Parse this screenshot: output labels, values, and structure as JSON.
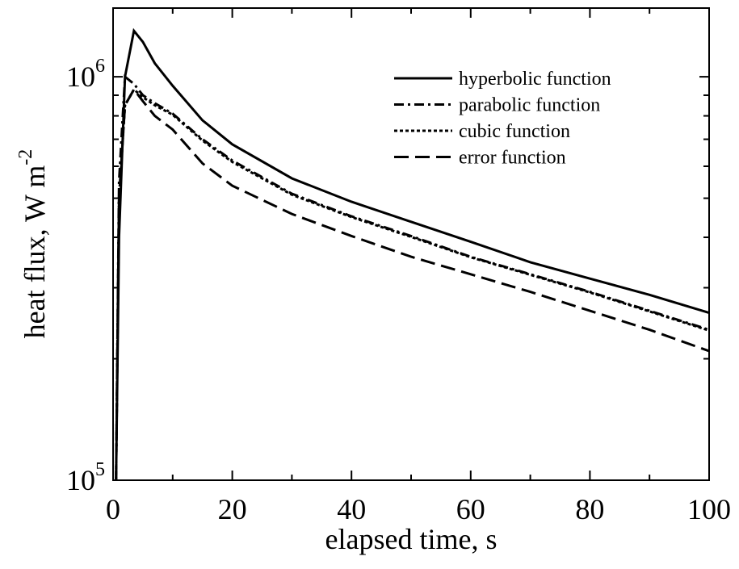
{
  "chart_data": {
    "type": "line",
    "x_label": "elapsed time, s",
    "y_label": "heat flux, W m",
    "y_label_exponent": "-2",
    "x": [
      0.5,
      1,
      2,
      3.5,
      5,
      7,
      10,
      15,
      20,
      30,
      40,
      50,
      60,
      70,
      80,
      90,
      100
    ],
    "series": [
      {
        "name": "hyperbolic function",
        "color": "#000000",
        "dash": "solid",
        "values": [
          100000,
          400000,
          1000000,
          1300000,
          1220000,
          1080000,
          950000,
          780000,
          680000,
          560000,
          490000,
          437000,
          390000,
          347000,
          316000,
          288000,
          260000
        ]
      },
      {
        "name": "parabolic function",
        "color": "#000000",
        "dash": "dashdot",
        "values": [
          100000,
          550000,
          1000000,
          960000,
          900000,
          860000,
          810000,
          700000,
          620000,
          513000,
          451000,
          403000,
          358000,
          324000,
          293000,
          263000,
          236000
        ]
      },
      {
        "name": "cubic function",
        "color": "#000000",
        "dash": "dotted",
        "values": [
          100000,
          500000,
          850000,
          930000,
          890000,
          850000,
          805000,
          695000,
          615000,
          510000,
          449000,
          401000,
          357000,
          323000,
          292000,
          262000,
          235000
        ]
      },
      {
        "name": "error function",
        "color": "#000000",
        "dash": "dashed",
        "values": [
          100000,
          500000,
          850000,
          930000,
          870000,
          800000,
          740000,
          610000,
          537000,
          457000,
          403000,
          358000,
          324000,
          293000,
          263000,
          236000,
          209000
        ]
      }
    ],
    "xlim": [
      0,
      100
    ],
    "xticks": [
      0,
      20,
      40,
      60,
      80,
      100
    ],
    "xminor_ticks": [
      10,
      30,
      50,
      70,
      90
    ],
    "ylim": [
      100000,
      1480000
    ],
    "y_log": true,
    "yticks": [
      {
        "value": 100000,
        "label": "10",
        "exponent": "5"
      },
      {
        "value": 1000000,
        "label": "10",
        "exponent": "6"
      }
    ],
    "yminor_ticks": [
      200000,
      300000,
      400000,
      500000,
      600000,
      700000,
      800000,
      900000
    ],
    "grid": false,
    "legend": "upper right"
  }
}
